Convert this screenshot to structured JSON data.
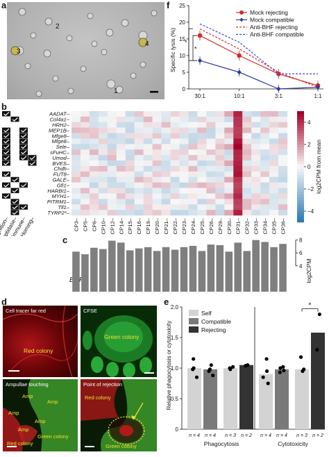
{
  "panel_letters": {
    "a": "a",
    "b": "b",
    "c": "c",
    "d": "d",
    "e": "e",
    "f": "f"
  },
  "panel_a": {
    "cell_labels": [
      "1",
      "2",
      "3",
      "4"
    ],
    "bg_color": "#b8b8b8"
  },
  "panel_f": {
    "chart_data": {
      "type": "line",
      "ylabel": "Specific lysis (%)",
      "categories": [
        "30:1",
        "10:1",
        "3:1",
        "1:1"
      ],
      "yticks": [
        "0",
        "5",
        "10",
        "15",
        "20",
        "25"
      ],
      "ylim": [
        0,
        25
      ],
      "series": [
        {
          "name": "Mock rejecting",
          "values": [
            16,
            10,
            4.5,
            1
          ],
          "color": "#d42a2a",
          "style": "solid",
          "marker": "circle"
        },
        {
          "name": "Mock compatible",
          "values": [
            8.5,
            5,
            0,
            0.5
          ],
          "color": "#2a3a9a",
          "style": "solid",
          "marker": "diamond"
        },
        {
          "name": "Anti-BHF rejecting",
          "values": [
            18,
            12,
            5,
            0.5
          ],
          "color": "#d42a2a",
          "style": "dashed",
          "marker": "none"
        },
        {
          "name": "Anti-BHF compatible",
          "values": [
            19.5,
            14,
            4.5,
            4.5
          ],
          "color": "#3a4ad0",
          "style": "dashed",
          "marker": "none"
        }
      ],
      "significance": [
        "*",
        "*"
      ]
    }
  },
  "panel_b": {
    "genes": [
      "AADAT",
      "Col4a1",
      "HRH2",
      "MEP1B",
      "Mfge8",
      "Mfge8",
      "Sele",
      "sFuHC",
      "Umod",
      "BVES",
      "Chdh",
      "FUT8",
      "GALE",
      "Gfi1",
      "HARBI1",
      "MYH1",
      "PITRM1",
      "Tll1",
      "TYRP2*"
    ],
    "categories": [
      "Recognition",
      "Peptidase",
      "Immune",
      "Homing"
    ],
    "checks": [
      [
        1,
        0,
        0,
        0
      ],
      [
        0,
        1,
        0,
        0
      ],
      [
        0,
        0,
        0,
        0
      ],
      [
        1,
        0,
        1,
        0
      ],
      [
        1,
        0,
        1,
        0
      ],
      [
        1,
        0,
        1,
        0
      ],
      [
        1,
        0,
        1,
        0
      ],
      [
        1,
        0,
        1,
        0
      ],
      [
        1,
        0,
        1,
        1
      ],
      [
        1,
        0,
        0,
        1
      ],
      [
        0,
        0,
        0,
        0
      ],
      [
        1,
        0,
        0,
        0
      ],
      [
        0,
        1,
        0,
        0
      ],
      [
        1,
        0,
        1,
        0
      ],
      [
        0,
        1,
        0,
        0
      ],
      [
        1,
        0,
        0,
        0
      ],
      [
        0,
        1,
        0,
        0
      ],
      [
        0,
        1,
        1,
        0
      ],
      [
        0,
        1,
        0,
        0
      ]
    ],
    "colonies": [
      "CP3",
      "CP5",
      "CP6",
      "CP10",
      "CP12",
      "CP14",
      "CP15",
      "CP16",
      "CP19",
      "CP20",
      "CP21",
      "CP22",
      "CP23",
      "CP24",
      "CP25",
      "CP26",
      "CP29",
      "CP30",
      "CP31",
      "CP32",
      "CP33",
      "CP34",
      "CP35",
      "CP36"
    ],
    "colorbar_label": "log2CPM from mean",
    "colorbar_ticks": [
      "4",
      "2",
      "0",
      "−2",
      "−4"
    ],
    "color_low": "#2c7bb6",
    "color_mid": "#f7f7f7",
    "color_high": "#a50026"
  },
  "panel_c": {
    "label": "BHF",
    "axis_label": "log2CPM",
    "ticks": [
      "8",
      "6",
      "4"
    ],
    "values": [
      6.2,
      5.8,
      6.8,
      6.6,
      7.9,
      7.6,
      6.4,
      6.7,
      6.9,
      6.3,
      6.9,
      6.5,
      6.9,
      7.1,
      6.3,
      7.3,
      7.2,
      6.2,
      7.6,
      6.3,
      8.0,
      7.7,
      6.9,
      7.4
    ],
    "ylim": [
      0,
      8.6
    ],
    "bar_color": "#7f7f7f"
  },
  "panel_d": {
    "tl": {
      "title": "Cell tracer far red",
      "label": "Red colony"
    },
    "tr": {
      "title": "CFSE",
      "label": "Green colony"
    },
    "bl": {
      "title": "Ampullae touching",
      "amp_labels": [
        "Amp",
        "Amp",
        "Amp",
        "Amp",
        "Amp"
      ],
      "red_label": "Red colony",
      "green_label": "Green colony"
    },
    "br": {
      "title": "Point of rejection",
      "red_label": "Red colony",
      "green_label": "Green colony"
    }
  },
  "panel_e": {
    "chart_data": {
      "type": "bar",
      "ylabel": "Relative phagocytosis or cytotoxicity",
      "yticks": [
        "0",
        "0.5",
        "1.0",
        "1.5",
        "2.0"
      ],
      "ylim": [
        0,
        2.0
      ],
      "legend": [
        {
          "name": "Self",
          "color": "#d3d3d3"
        },
        {
          "name": "Compatible",
          "color": "#7a7a7a"
        },
        {
          "name": "Rejecting",
          "color": "#333333"
        }
      ],
      "groups": [
        {
          "label": "Phagocytosis",
          "bars": [
            {
              "series": "Self",
              "value": 1.0,
              "n": "n = 4",
              "points": [
                1.15,
                0.98,
                0.85,
                1.0
              ]
            },
            {
              "series": "Compatible",
              "value": 0.98,
              "n": "n = 4",
              "points": [
                1.05,
                0.95,
                0.88,
                0.98
              ]
            },
            {
              "series": "Self",
              "value": 1.0,
              "n": "n = 3",
              "points": [
                1.0,
                0.98,
                1.02
              ]
            },
            {
              "series": "Rejecting",
              "value": 1.05,
              "n": "n = 2",
              "points": [
                1.05,
                1.04
              ]
            }
          ]
        },
        {
          "label": "Cytotoxicity",
          "bars": [
            {
              "series": "Self",
              "value": 0.9,
              "n": "n = 4",
              "points": [
                1.15,
                0.95,
                0.85,
                0.75
              ]
            },
            {
              "series": "Compatible",
              "value": 0.98,
              "n": "n = 4",
              "points": [
                1.02,
                0.96,
                0.93,
                1.0
              ]
            },
            {
              "series": "Self",
              "value": 0.98,
              "n": "n = 3",
              "points": [
                1.18,
                0.98,
                0.95
              ]
            },
            {
              "series": "Rejecting",
              "value": 1.58,
              "n": "n = 2",
              "points": [
                1.88,
                1.3
              ]
            }
          ]
        }
      ],
      "significance": "*"
    }
  }
}
